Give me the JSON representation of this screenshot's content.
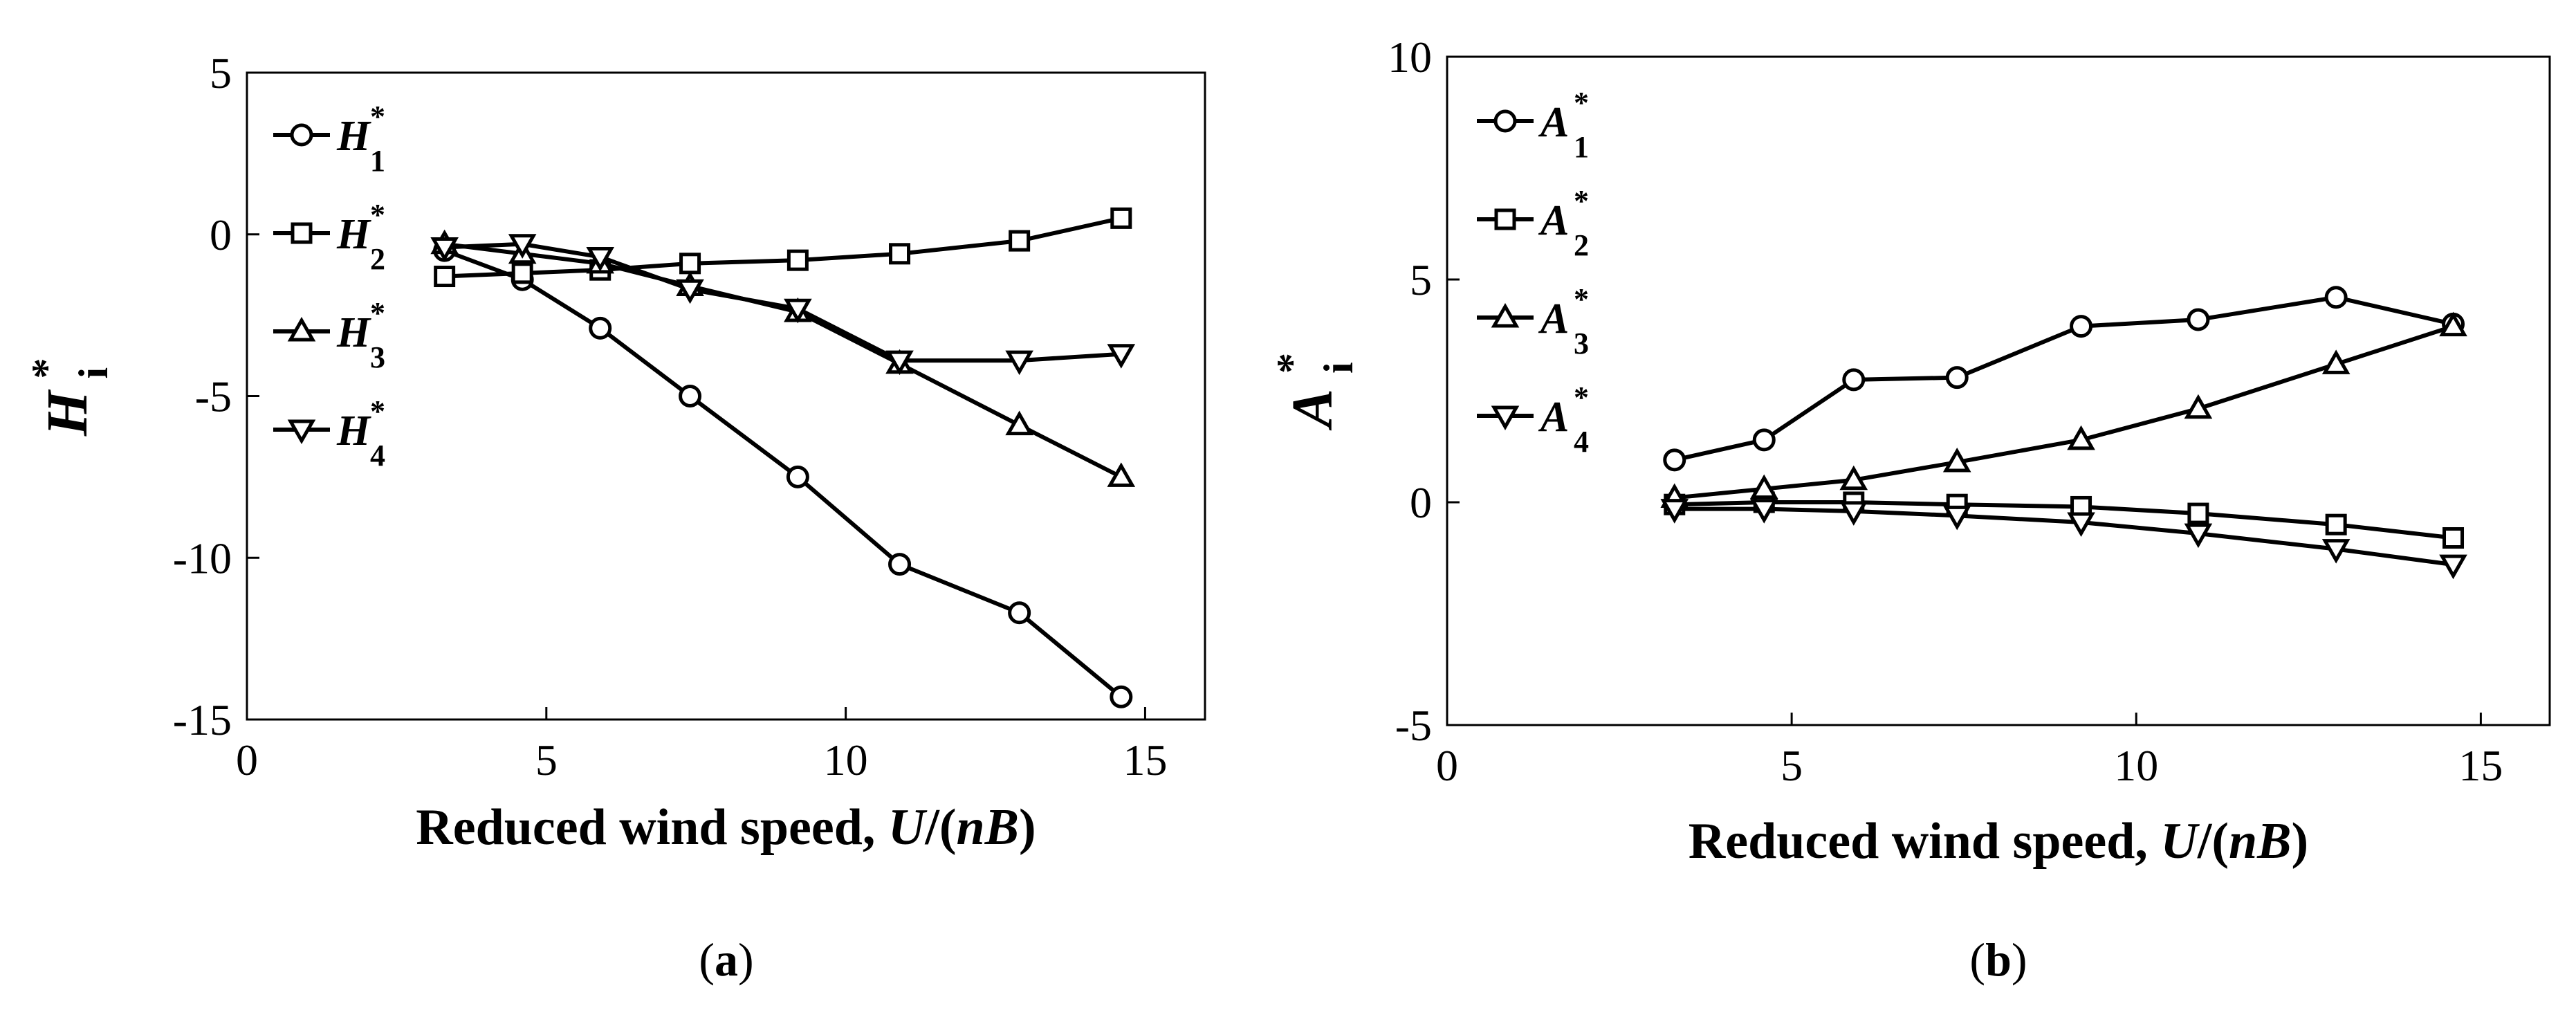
{
  "chart_data": [
    {
      "type": "line",
      "caption_letter": "a",
      "title": "",
      "xlabel": "Reduced wind speed, U/(nB)",
      "xlabel_plain": "Reduced wind speed, ",
      "xlabel_italic_1": "U",
      "xlabel_slash": "/(",
      "xlabel_italic_2": "nB",
      "xlabel_close": ")",
      "ylabel": "H*i",
      "ylabel_symbol": "H",
      "ylabel_sup": "*",
      "ylabel_sub": "i",
      "xlim": [
        0,
        16
      ],
      "ylim": [
        -15,
        5
      ],
      "xticks": [
        0,
        5,
        10,
        15
      ],
      "yticks": [
        -15,
        -10,
        -5,
        0,
        5
      ],
      "grid": false,
      "legend_position": "top-left",
      "x": [
        3.3,
        4.6,
        5.9,
        7.4,
        9.2,
        10.9,
        12.9,
        14.6
      ],
      "series": [
        {
          "name": "H*1",
          "symbol": "H",
          "sub": "1",
          "sup": "*",
          "marker": "circle",
          "values": [
            -0.5,
            -1.4,
            -2.9,
            -5.0,
            -7.5,
            -10.2,
            -11.7,
            -14.3
          ]
        },
        {
          "name": "H*2",
          "symbol": "H",
          "sub": "2",
          "sup": "*",
          "marker": "square",
          "values": [
            -1.3,
            -1.2,
            -1.1,
            -0.9,
            -0.8,
            -0.6,
            -0.2,
            0.5
          ]
        },
        {
          "name": "H*3",
          "symbol": "H",
          "sub": "3",
          "sup": "*",
          "marker": "triangle-up",
          "values": [
            -0.3,
            -0.6,
            -0.9,
            -1.6,
            -2.4,
            -4.0,
            -5.9,
            -7.5
          ]
        },
        {
          "name": "H*4",
          "symbol": "H",
          "sub": "4",
          "sup": "*",
          "marker": "triangle-down",
          "values": [
            -0.4,
            -0.3,
            -0.7,
            -1.7,
            -2.3,
            -3.9,
            -3.9,
            -3.7
          ]
        }
      ]
    },
    {
      "type": "line",
      "caption_letter": "b",
      "title": "",
      "xlabel": "Reduced wind speed, U/(nB)",
      "xlabel_plain": "Reduced wind speed, ",
      "xlabel_italic_1": "U",
      "xlabel_slash": "/(",
      "xlabel_italic_2": "nB",
      "xlabel_close": ")",
      "ylabel": "A*i",
      "ylabel_symbol": "A",
      "ylabel_sup": "*",
      "ylabel_sub": "i",
      "xlim": [
        0,
        16
      ],
      "ylim": [
        -5,
        10
      ],
      "xticks": [
        0,
        5,
        10,
        15
      ],
      "yticks": [
        -5,
        0,
        5,
        10
      ],
      "grid": false,
      "legend_position": "top-left",
      "x": [
        3.3,
        4.6,
        5.9,
        7.4,
        9.2,
        10.9,
        12.9,
        14.6
      ],
      "series": [
        {
          "name": "A*1",
          "symbol": "A",
          "sub": "1",
          "sup": "*",
          "marker": "circle",
          "values": [
            0.95,
            1.4,
            2.75,
            2.8,
            3.95,
            4.1,
            4.6,
            4.0
          ]
        },
        {
          "name": "A*2",
          "symbol": "A",
          "sub": "2",
          "sup": "*",
          "marker": "square",
          "values": [
            -0.05,
            0.0,
            0.0,
            -0.05,
            -0.1,
            -0.25,
            -0.5,
            -0.8
          ]
        },
        {
          "name": "A*3",
          "symbol": "A",
          "sub": "3",
          "sup": "*",
          "marker": "triangle-up",
          "values": [
            0.1,
            0.3,
            0.5,
            0.9,
            1.4,
            2.1,
            3.1,
            3.95
          ]
        },
        {
          "name": "A*4",
          "symbol": "A",
          "sub": "4",
          "sup": "*",
          "marker": "triangle-down",
          "values": [
            -0.15,
            -0.15,
            -0.2,
            -0.3,
            -0.45,
            -0.7,
            -1.05,
            -1.4
          ]
        }
      ]
    }
  ]
}
